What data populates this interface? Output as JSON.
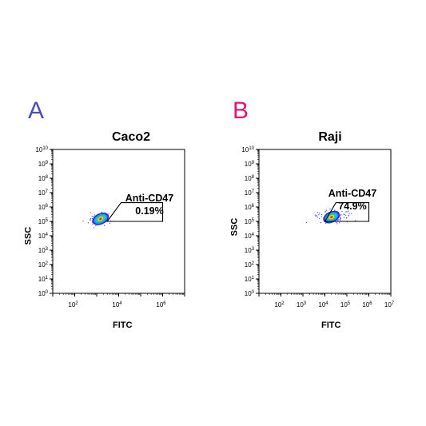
{
  "panels": [
    {
      "letter": "A",
      "letter_color": "#4a4fb8",
      "title": "Caco2",
      "gate": {
        "name": "Anti-CD47",
        "percent": "0.19%"
      }
    },
    {
      "letter": "B",
      "letter_color": "#e0147a",
      "title": "Raji",
      "gate": {
        "name": "Anti-CD47",
        "percent": "74.9%"
      }
    }
  ],
  "chart_data": [
    {
      "type": "scatter",
      "title": "Caco2",
      "xlabel": "FITC",
      "ylabel": "SSC",
      "xscale": "log",
      "yscale": "log",
      "xlim": [
        10,
        10000000
      ],
      "ylim": [
        1,
        10000000000
      ],
      "x_tick_labels": [
        "10^2",
        "10^4",
        "10^6"
      ],
      "y_tick_labels": [
        "10^0",
        "10^1",
        "10^2",
        "10^3",
        "10^4",
        "10^5",
        "10^6",
        "10^7",
        "10^8",
        "10^9",
        "10^10"
      ],
      "population": {
        "center_x": 1500,
        "center_y": 150000
      },
      "gate": {
        "label": "Anti-CD47",
        "value": "0.19%",
        "x_range": [
          3000,
          1000000
        ],
        "y_range": [
          100000,
          2000000
        ]
      }
    },
    {
      "type": "scatter",
      "title": "Raji",
      "xlabel": "FITC",
      "ylabel": "SSC",
      "xscale": "log",
      "yscale": "log",
      "xlim": [
        10,
        10000000
      ],
      "ylim": [
        1,
        10000000000
      ],
      "x_tick_labels": [
        "10^2",
        "10^3",
        "10^4",
        "10^5",
        "10^6",
        "10^7"
      ],
      "y_tick_labels": [
        "10^0",
        "10^1",
        "10^2",
        "10^3",
        "10^4",
        "10^5",
        "10^6",
        "10^7",
        "10^8",
        "10^9",
        "10^10"
      ],
      "population": {
        "center_x": 20000,
        "center_y": 200000
      },
      "gate": {
        "label": "Anti-CD47",
        "value": "74.9%",
        "x_range": [
          10000,
          1000000
        ],
        "y_range": [
          100000,
          2000000
        ]
      }
    }
  ]
}
